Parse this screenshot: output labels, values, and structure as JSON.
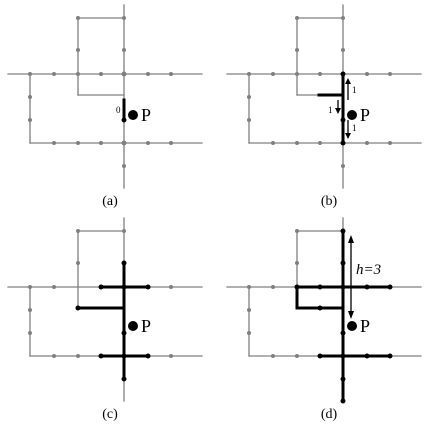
{
  "panels": [
    {
      "caption": "(a)",
      "point_label": "P",
      "annotations": [
        "0"
      ],
      "height_label": ""
    },
    {
      "caption": "(b)",
      "point_label": "P",
      "annotations": [
        "1",
        "1",
        "1"
      ],
      "height_label": ""
    },
    {
      "caption": "(c)",
      "point_label": "P",
      "annotations": [],
      "height_label": ""
    },
    {
      "caption": "(d)",
      "point_label": "P",
      "annotations": [],
      "height_label": "h=3"
    }
  ],
  "colors": {
    "thin_edge": "#808080",
    "thick_edge": "#000000",
    "background": "#ffffff"
  }
}
